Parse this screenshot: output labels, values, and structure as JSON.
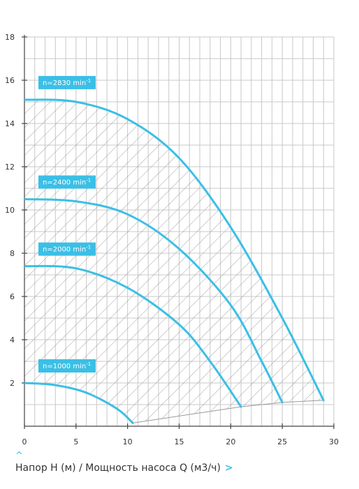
{
  "chart_data": {
    "type": "line",
    "x_range": [
      0,
      30
    ],
    "y_range": [
      0,
      18
    ],
    "x_ticks": [
      0,
      5,
      10,
      15,
      20,
      25,
      30
    ],
    "y_ticks": [
      2,
      4,
      6,
      8,
      10,
      12,
      14,
      16,
      18
    ],
    "grid": true,
    "hatched_operating_area": true,
    "line_color": "#3bbfe6",
    "series": [
      {
        "name": "n=2830 min-1",
        "label": "n=2830 min",
        "sup": "-1",
        "values": [
          [
            0,
            15.1
          ],
          [
            5,
            15.0
          ],
          [
            10,
            14.2
          ],
          [
            15,
            12.4
          ],
          [
            20,
            9.2
          ],
          [
            25,
            5.0
          ],
          [
            29,
            1.2
          ]
        ]
      },
      {
        "name": "n=2400 min-1",
        "label": "n=2400 min",
        "sup": "-1",
        "values": [
          [
            0,
            10.5
          ],
          [
            5,
            10.4
          ],
          [
            10,
            9.8
          ],
          [
            15,
            8.2
          ],
          [
            20,
            5.6
          ],
          [
            23,
            3.0
          ],
          [
            25,
            1.1
          ]
        ]
      },
      {
        "name": "n=2000 min-1",
        "label": "n=2000 min",
        "sup": "-1",
        "values": [
          [
            0,
            7.4
          ],
          [
            5,
            7.3
          ],
          [
            10,
            6.4
          ],
          [
            15,
            4.7
          ],
          [
            18,
            3.0
          ],
          [
            21,
            0.9
          ]
        ]
      },
      {
        "name": "n=1000 min-1",
        "label": "n=1000 min",
        "sup": "-1",
        "values": [
          [
            0,
            2.0
          ],
          [
            3,
            1.9
          ],
          [
            6,
            1.55
          ],
          [
            9,
            0.8
          ],
          [
            10.5,
            0.15
          ]
        ]
      }
    ]
  },
  "caption": {
    "up_arrow": "^",
    "text": "Напор H (м) / Мощность насоса Q (м3/ч)",
    "arrow": ">"
  }
}
